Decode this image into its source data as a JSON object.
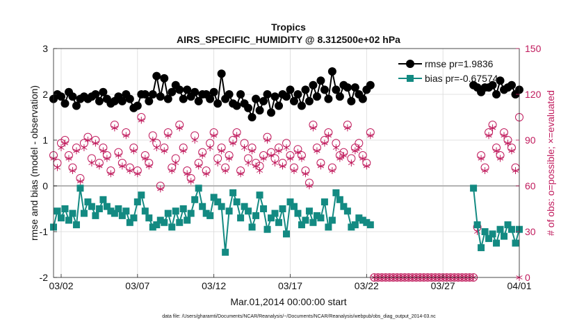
{
  "chart_data": {
    "type": "line",
    "title": "Tropics",
    "subtitle": "AIRS_SPECIFIC_HUMIDITY @ 8.312500e+02 hPa",
    "xlabel": "Mar.01,2014 00:00:00 start",
    "ylabel": "rmse and bias (model - observation)",
    "y2label": "# of obs: o=possible; ×=evaluated",
    "footnote": "data file: /Users/gharamti/Documents/NCAR/Reanalysis/~/Documents/NCAR/Reanalysis/webpub/obs_diag_output_2014-03.nc",
    "xlim": [
      1.5,
      32.0
    ],
    "ylim": [
      -2,
      3
    ],
    "y2lim": [
      0,
      150
    ],
    "x_ticks": [
      2,
      7,
      12,
      17,
      22,
      27,
      32
    ],
    "x_tick_labels": [
      "03/02",
      "03/07",
      "03/12",
      "03/17",
      "03/22",
      "03/27",
      "04/01"
    ],
    "y_ticks": [
      -2,
      -1,
      0,
      1,
      2,
      3
    ],
    "y_tick_labels": [
      "-2",
      "-1",
      "0",
      "1",
      "2",
      "3"
    ],
    "y2_ticks": [
      0,
      30,
      60,
      90,
      120,
      150
    ],
    "y2_tick_labels": [
      "0",
      "30",
      "60",
      "90",
      "120",
      "150"
    ],
    "colors": {
      "rmse": "#000000",
      "bias": "#138a82",
      "obs": "#c01a5c",
      "zero_line": "#b3b3b3",
      "grid": "#d9d9d9"
    },
    "legend": {
      "placement": "top-right",
      "entries": [
        "rmse pr=1.9836",
        "bias pr=-0.67574"
      ]
    },
    "series": [
      {
        "name": "rmse pr=1.9836",
        "x": [
          1.5,
          1.75,
          2.0,
          2.25,
          2.5,
          2.75,
          3.0,
          3.25,
          3.5,
          3.75,
          4.0,
          4.25,
          4.5,
          4.75,
          5.0,
          5.25,
          5.5,
          5.75,
          6.0,
          6.25,
          6.5,
          6.75,
          7.0,
          7.25,
          7.5,
          7.75,
          8.0,
          8.25,
          8.5,
          8.75,
          9.0,
          9.25,
          9.5,
          9.75,
          10.0,
          10.25,
          10.5,
          10.75,
          11.0,
          11.25,
          11.5,
          11.75,
          12.0,
          12.25,
          12.5,
          12.75,
          13.0,
          13.25,
          13.5,
          13.75,
          14.0,
          14.25,
          14.5,
          14.75,
          15.0,
          15.25,
          15.5,
          15.75,
          16.0,
          16.25,
          16.5,
          16.75,
          17.0,
          17.25,
          17.5,
          17.75,
          18.0,
          18.25,
          18.5,
          18.75,
          19.0,
          19.25,
          19.5,
          19.75,
          20.0,
          20.25,
          20.5,
          20.75,
          21.0,
          21.25,
          21.5,
          21.75,
          22.0,
          22.25,
          29.0,
          29.25,
          29.5,
          29.75,
          30.0,
          30.25,
          30.5,
          30.75,
          31.0,
          31.25,
          31.5,
          31.75,
          32.0
        ],
        "values": [
          1.9,
          2.0,
          1.95,
          1.8,
          2.05,
          1.95,
          1.75,
          1.9,
          1.95,
          1.9,
          1.95,
          2.0,
          1.85,
          2.05,
          1.9,
          1.8,
          1.85,
          1.95,
          1.85,
          2.0,
          1.9,
          1.7,
          1.75,
          2.0,
          2.0,
          1.85,
          2.0,
          2.4,
          1.95,
          2.35,
          1.9,
          2.05,
          2.2,
          2.1,
          1.9,
          2.1,
          1.95,
          2.05,
          1.85,
          2.0,
          2.0,
          1.9,
          2.05,
          1.8,
          2.45,
          1.9,
          2.0,
          1.8,
          1.75,
          2.0,
          1.8,
          1.7,
          1.5,
          1.9,
          1.65,
          1.85,
          2.0,
          1.6,
          1.95,
          1.75,
          2.0,
          1.95,
          2.1,
          1.85,
          2.0,
          1.75,
          2.1,
          1.85,
          2.2,
          1.95,
          2.3,
          2.1,
          1.9,
          2.5,
          2.1,
          1.95,
          2.2,
          2.15,
          1.85,
          2.15,
          2.0,
          1.9,
          2.1,
          2.2,
          2.2,
          2.15,
          2.05,
          2.15,
          2.15,
          2.2,
          2.0,
          2.3,
          2.1,
          2.15,
          2.2,
          2.0,
          2.1
        ]
      },
      {
        "name": "bias pr=-0.67574",
        "x": [
          1.5,
          1.75,
          2.0,
          2.25,
          2.5,
          2.75,
          3.0,
          3.25,
          3.5,
          3.75,
          4.0,
          4.25,
          4.5,
          4.75,
          5.0,
          5.25,
          5.5,
          5.75,
          6.0,
          6.25,
          6.5,
          6.75,
          7.0,
          7.25,
          7.5,
          7.75,
          8.0,
          8.25,
          8.5,
          8.75,
          9.0,
          9.25,
          9.5,
          9.75,
          10.0,
          10.25,
          10.5,
          10.75,
          11.0,
          11.25,
          11.5,
          11.75,
          12.0,
          12.25,
          12.5,
          12.75,
          13.0,
          13.25,
          13.5,
          13.75,
          14.0,
          14.25,
          14.5,
          14.75,
          15.0,
          15.25,
          15.5,
          15.75,
          16.0,
          16.25,
          16.5,
          16.75,
          17.0,
          17.25,
          17.5,
          17.75,
          18.0,
          18.25,
          18.5,
          18.75,
          19.0,
          19.25,
          19.5,
          19.75,
          20.0,
          20.25,
          20.5,
          20.75,
          21.0,
          21.25,
          21.5,
          21.75,
          22.0,
          22.25,
          29.0,
          29.25,
          29.5,
          29.75,
          30.0,
          30.25,
          30.5,
          30.75,
          31.0,
          31.25,
          31.5,
          31.75,
          32.0
        ],
        "values": [
          -0.9,
          -0.55,
          -0.7,
          -0.5,
          -0.75,
          -0.6,
          -0.85,
          -0.05,
          -0.6,
          -0.35,
          -0.45,
          -0.65,
          -0.5,
          -0.3,
          -0.45,
          -0.55,
          -0.6,
          -0.5,
          -0.65,
          -0.55,
          -0.8,
          -0.7,
          -0.35,
          -0.2,
          -0.55,
          -0.7,
          -0.9,
          -0.85,
          -0.75,
          -0.8,
          -0.6,
          -0.9,
          -0.55,
          -0.8,
          -0.5,
          -0.75,
          -0.6,
          -0.3,
          -0.05,
          -0.45,
          -0.6,
          -0.65,
          -0.25,
          -0.35,
          -0.45,
          -1.45,
          -0.55,
          -0.15,
          -0.35,
          -0.7,
          -0.45,
          -0.55,
          -0.9,
          -0.65,
          -0.2,
          -0.5,
          -0.95,
          -0.7,
          -0.6,
          -0.8,
          -0.5,
          -1.05,
          -0.35,
          -0.45,
          -0.6,
          -0.85,
          -0.75,
          -0.55,
          -0.8,
          -0.65,
          -0.7,
          -0.35,
          -0.9,
          -0.75,
          -0.15,
          -0.3,
          -0.45,
          -0.55,
          -0.9,
          -0.85,
          -0.7,
          -0.75,
          -0.8,
          -0.85,
          -0.05,
          -0.85,
          -1.35,
          -1.0,
          -1.15,
          -1.05,
          -1.25,
          -0.95,
          -1.1,
          -0.85,
          -0.95,
          -1.25,
          -0.95
        ]
      }
    ],
    "obs_possible": {
      "x": [
        1.5,
        1.75,
        2.0,
        2.25,
        2.5,
        2.75,
        3.0,
        3.25,
        3.5,
        3.75,
        4.0,
        4.25,
        4.5,
        4.75,
        5.0,
        5.25,
        5.5,
        5.75,
        6.0,
        6.25,
        6.5,
        6.75,
        7.0,
        7.25,
        7.5,
        7.75,
        8.0,
        8.25,
        8.5,
        8.75,
        9.0,
        9.25,
        9.5,
        9.75,
        10.0,
        10.25,
        10.5,
        10.75,
        11.0,
        11.25,
        11.5,
        11.75,
        12.0,
        12.25,
        12.5,
        12.75,
        13.0,
        13.25,
        13.5,
        13.75,
        14.0,
        14.25,
        14.5,
        14.75,
        15.0,
        15.25,
        15.5,
        15.75,
        16.0,
        16.25,
        16.5,
        16.75,
        17.0,
        17.25,
        17.5,
        17.75,
        18.0,
        18.25,
        18.5,
        18.75,
        19.0,
        19.25,
        19.5,
        19.75,
        20.0,
        20.25,
        20.5,
        20.75,
        21.0,
        21.25,
        21.5,
        21.75,
        22.0,
        22.25,
        22.5,
        22.75,
        23.0,
        23.25,
        23.5,
        23.75,
        24.0,
        24.25,
        24.5,
        24.75,
        25.0,
        25.25,
        25.5,
        25.75,
        26.0,
        26.25,
        26.5,
        26.75,
        27.0,
        27.25,
        27.5,
        27.75,
        28.0,
        28.25,
        28.5,
        28.75,
        29.0,
        29.25,
        29.5,
        29.75,
        30.0,
        30.25,
        30.5,
        30.75,
        31.0,
        31.25,
        31.5,
        31.75,
        32.0
      ],
      "values": [
        80,
        75,
        88,
        90,
        80,
        72,
        85,
        65,
        88,
        92,
        78,
        90,
        75,
        85,
        80,
        70,
        100,
        82,
        75,
        95,
        72,
        85,
        70,
        105,
        80,
        75,
        93,
        88,
        60,
        85,
        95,
        72,
        78,
        100,
        85,
        70,
        65,
        93,
        75,
        82,
        70,
        88,
        95,
        78,
        85,
        72,
        80,
        90,
        95,
        70,
        88,
        78,
        85,
        75,
        73,
        80,
        92,
        82,
        78,
        85,
        75,
        88,
        80,
        72,
        84,
        80,
        70,
        62,
        100,
        85,
        75,
        90,
        95,
        72,
        88,
        80,
        82,
        100,
        78,
        85,
        88,
        80,
        75,
        95,
        0,
        0,
        0,
        0,
        0,
        0,
        0,
        0,
        0,
        0,
        0,
        0,
        0,
        0,
        0,
        0,
        0,
        0,
        0,
        0,
        0,
        0,
        0,
        0,
        0,
        0,
        0,
        33,
        80,
        72,
        95,
        100,
        85,
        80,
        95,
        90,
        85,
        72,
        105
      ]
    },
    "obs_evaluated": {
      "x": [
        1.5,
        1.75,
        2.0,
        2.25,
        2.5,
        2.75,
        3.0,
        3.25,
        3.5,
        3.75,
        4.0,
        4.25,
        4.5,
        4.75,
        5.0,
        5.25,
        5.5,
        5.75,
        6.0,
        6.25,
        6.5,
        6.75,
        7.0,
        7.25,
        7.5,
        7.75,
        8.0,
        8.25,
        8.5,
        8.75,
        9.0,
        9.25,
        9.5,
        9.75,
        10.0,
        10.25,
        10.5,
        10.75,
        11.0,
        11.25,
        11.5,
        11.75,
        12.0,
        12.25,
        12.5,
        12.75,
        13.0,
        13.25,
        13.5,
        13.75,
        14.0,
        14.25,
        14.5,
        14.75,
        15.0,
        15.25,
        15.5,
        15.75,
        16.0,
        16.25,
        16.5,
        16.75,
        17.0,
        17.25,
        17.5,
        17.75,
        18.0,
        18.25,
        18.5,
        18.75,
        19.0,
        19.25,
        19.5,
        19.75,
        20.0,
        20.25,
        20.5,
        20.75,
        21.0,
        21.25,
        21.5,
        21.75,
        22.0,
        22.25,
        22.5,
        22.75,
        23.0,
        23.25,
        23.5,
        23.75,
        24.0,
        24.25,
        24.5,
        24.75,
        25.0,
        25.25,
        25.5,
        25.75,
        26.0,
        26.25,
        26.5,
        26.75,
        27.0,
        27.25,
        27.5,
        27.75,
        28.0,
        28.25,
        28.5,
        28.75,
        29.0,
        29.25,
        29.5,
        29.75,
        30.0,
        30.25,
        30.5,
        30.75,
        31.0,
        31.25,
        31.5,
        31.75,
        32.0
      ],
      "values": [
        78,
        72,
        85,
        88,
        78,
        70,
        83,
        63,
        85,
        90,
        75,
        88,
        73,
        83,
        78,
        68,
        98,
        80,
        73,
        93,
        70,
        83,
        68,
        103,
        78,
        73,
        90,
        85,
        58,
        83,
        93,
        70,
        75,
        98,
        83,
        68,
        63,
        90,
        73,
        80,
        68,
        85,
        93,
        75,
        83,
        70,
        78,
        88,
        93,
        68,
        85,
        75,
        83,
        73,
        70,
        78,
        90,
        80,
        75,
        83,
        73,
        85,
        78,
        70,
        82,
        78,
        68,
        60,
        98,
        83,
        73,
        88,
        93,
        70,
        85,
        78,
        80,
        98,
        75,
        83,
        85,
        78,
        73,
        93,
        0,
        0,
        0,
        0,
        0,
        0,
        0,
        0,
        0,
        0,
        0,
        0,
        0,
        0,
        0,
        0,
        0,
        0,
        0,
        0,
        0,
        0,
        0,
        0,
        0,
        0,
        0,
        30,
        78,
        70,
        93,
        98,
        83,
        78,
        93,
        88,
        83,
        70,
        0
      ]
    }
  }
}
